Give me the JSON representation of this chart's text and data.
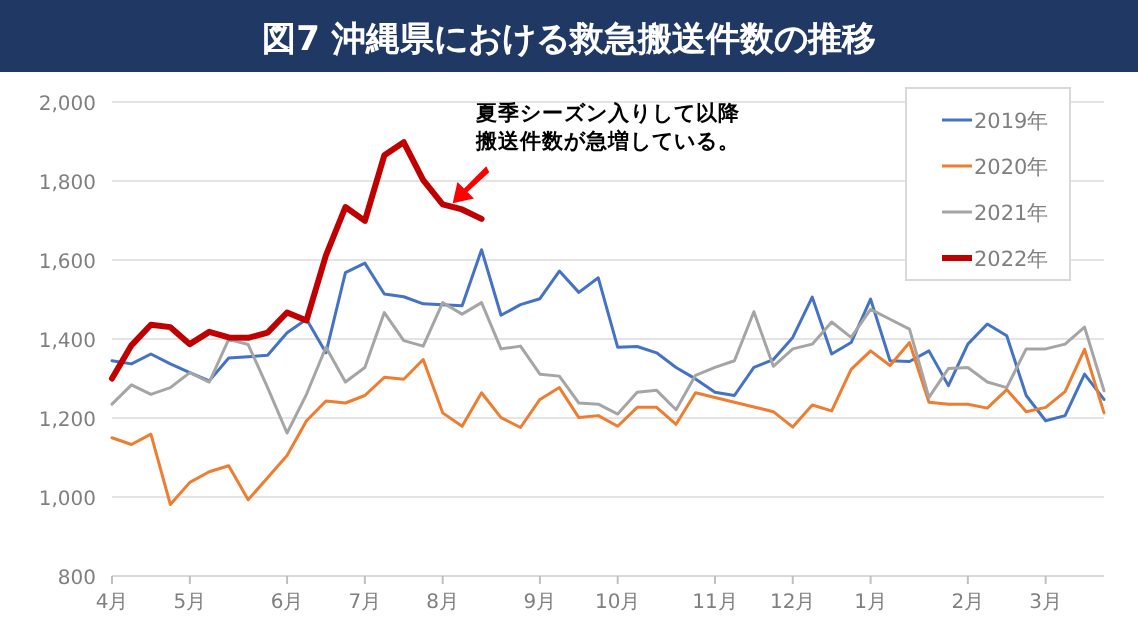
{
  "chart_data": {
    "type": "line",
    "title": "図7 沖縄県における救急搬送件数の推移",
    "categories": [
      "4月",
      null,
      null,
      null,
      "5月",
      null,
      null,
      null,
      null,
      "6月",
      null,
      null,
      null,
      "7月",
      null,
      null,
      null,
      "8月",
      null,
      null,
      null,
      null,
      "9月",
      null,
      null,
      null,
      "10月",
      null,
      null,
      null,
      null,
      "11月",
      null,
      null,
      null,
      "12月",
      null,
      null,
      null,
      "1月",
      null,
      null,
      null,
      null,
      "2月",
      null,
      null,
      null,
      "3月",
      null,
      null,
      null
    ],
    "series": [
      {
        "name": "2019年",
        "color": "#4472c4",
        "values": [
          1345,
          1337,
          1362,
          1337,
          1315,
          1294,
          1352,
          1355,
          1359,
          1416,
          1450,
          1365,
          1568,
          1592,
          1514,
          1507,
          1489,
          1487,
          1484,
          1626,
          1460,
          1487,
          1502,
          1572,
          1518,
          1555,
          1379,
          1381,
          1365,
          1328,
          1299,
          1265,
          1257,
          1328,
          1348,
          1404,
          1506,
          1362,
          1391,
          1501,
          1345,
          1343,
          1370,
          1282,
          1387,
          1438,
          1408,
          1257,
          1193,
          1206,
          1311,
          1247
        ]
      },
      {
        "name": "2020年",
        "color": "#ed7d31",
        "values": [
          1150,
          1133,
          1159,
          981,
          1037,
          1064,
          1079,
          993,
          1049,
          1105,
          1193,
          1243,
          1238,
          1257,
          1303,
          1298,
          1348,
          1213,
          1179,
          1264,
          1201,
          1176,
          1247,
          1277,
          1201,
          1206,
          1179,
          1227,
          1227,
          1184,
          1264,
          1252,
          1240,
          1228,
          1216,
          1177,
          1233,
          1218,
          1323,
          1370,
          1333,
          1391,
          1240,
          1235,
          1235,
          1225,
          1272,
          1216,
          1227,
          1267,
          1374,
          1213
        ]
      },
      {
        "name": "2021年",
        "color": "#a5a5a5",
        "values": [
          1235,
          1284,
          1260,
          1277,
          1315,
          1291,
          1399,
          1386,
          1277,
          1162,
          1260,
          1379,
          1291,
          1328,
          1467,
          1396,
          1382,
          1492,
          1463,
          1492,
          1375,
          1382,
          1311,
          1306,
          1238,
          1235,
          1210,
          1265,
          1270,
          1221,
          1308,
          1328,
          1345,
          1469,
          1331,
          1375,
          1387,
          1443,
          1404,
          1475,
          1450,
          1425,
          1252,
          1325,
          1328,
          1291,
          1277,
          1375,
          1375,
          1387,
          1430,
          1269
        ]
      },
      {
        "name": "2022年",
        "color": "#c00000",
        "values": [
          1300,
          1384,
          1436,
          1430,
          1387,
          1418,
          1404,
          1403,
          1416,
          1467,
          1447,
          1612,
          1734,
          1699,
          1865,
          1898,
          1802,
          1741,
          1728,
          1704,
          null,
          null,
          null,
          null,
          null,
          null,
          null,
          null,
          null,
          null,
          null,
          null,
          null,
          null,
          null,
          null,
          null,
          null,
          null,
          null,
          null,
          null,
          null,
          null,
          null,
          null,
          null,
          null,
          null,
          null,
          null,
          null
        ]
      }
    ],
    "ylim": [
      800,
      2000
    ],
    "yticks": [
      {
        "value": 800,
        "label": "800"
      },
      {
        "value": 1000,
        "label": "1,000"
      },
      {
        "value": 1200,
        "label": "1,200"
      },
      {
        "value": 1400,
        "label": "1,400"
      },
      {
        "value": 1600,
        "label": "1,600"
      },
      {
        "value": 1800,
        "label": "1,800"
      },
      {
        "value": 2000,
        "label": "2,000"
      }
    ],
    "grid": "y",
    "legend": "top right",
    "marker": "none",
    "line_style": "solid",
    "annotations": [
      "夏季シーズン入りして以降搬送件数が急増している。"
    ]
  }
}
